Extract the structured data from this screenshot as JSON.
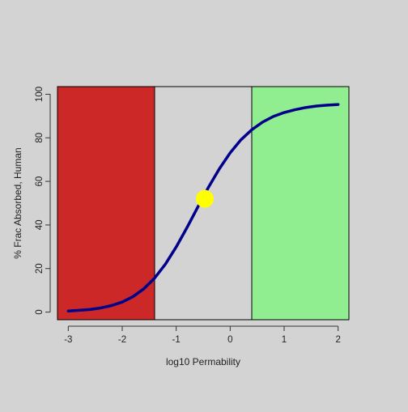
{
  "chart_data": {
    "type": "line",
    "title": "",
    "xlabel": "log10 Permability",
    "ylabel": "% Frac Absorbed, Human",
    "xlim": [
      -3.2,
      2.2
    ],
    "ylim": [
      -3.5,
      103.5
    ],
    "x_ticks": [
      -3,
      -2,
      -1,
      0,
      1,
      2
    ],
    "x_tick_labels": [
      "-3",
      "-2",
      "-1",
      "0",
      "1",
      "2"
    ],
    "y_ticks": [
      0,
      20,
      40,
      60,
      80,
      100
    ],
    "y_tick_labels": [
      "0",
      "20",
      "40",
      "60",
      "80",
      "100"
    ],
    "grid": false,
    "background_color": "#d3d3d3",
    "regions": [
      {
        "x_start": -3.2,
        "x_end": -1.4,
        "color": "#cc2828"
      },
      {
        "x_start": -1.4,
        "x_end": 0.4,
        "color": "#d3d3d3"
      },
      {
        "x_start": 0.4,
        "x_end": 2.2,
        "color": "#90ee90"
      }
    ],
    "series": [
      {
        "color": "#00008b",
        "x": [
          -3.0,
          -2.8,
          -2.6,
          -2.4,
          -2.2,
          -2.0,
          -1.8,
          -1.6,
          -1.4,
          -1.2,
          -1.0,
          -0.8,
          -0.6,
          -0.4,
          -0.2,
          0.0,
          0.2,
          0.4,
          0.6,
          0.8,
          1.0,
          1.2,
          1.4,
          1.6,
          1.8,
          2.0
        ],
        "y": [
          0.5,
          0.8,
          1.2,
          1.9,
          3.0,
          4.6,
          7.1,
          10.7,
          15.6,
          22.0,
          29.9,
          38.8,
          48.2,
          57.4,
          65.8,
          73.1,
          79.1,
          83.7,
          87.2,
          89.8,
          91.6,
          92.9,
          93.9,
          94.6,
          95.0,
          95.3
        ]
      }
    ],
    "highlight_point": {
      "x": -0.47,
      "y": 52,
      "color": "#ffff00"
    }
  }
}
